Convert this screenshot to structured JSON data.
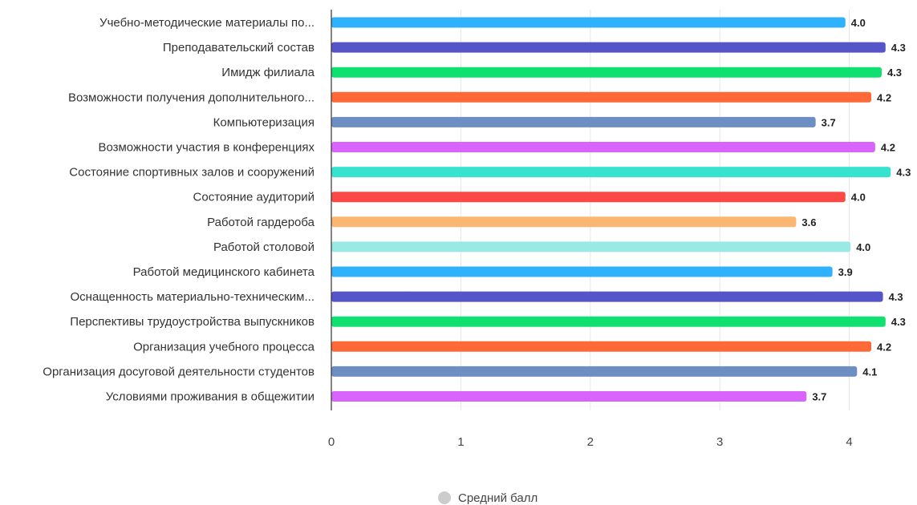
{
  "chart_data": {
    "type": "bar",
    "orientation": "horizontal",
    "categories": [
      "Учебно-методические материалы по...",
      "Преподавательский состав",
      "Имидж филиала",
      "Возможности получения дополнительного...",
      "Компьютеризация",
      "Возможности участия в конференциях",
      "Состояние спортивных залов и сооружений",
      "Состояние аудиторий",
      "Работой гардероба",
      "Работой столовой",
      "Работой медицинского кабинета",
      "Оснащенность материально-техническим...",
      "Перспективы трудоустройства выпускников",
      "Организация учебного процесса",
      "Организация досуговой деятельности студентов",
      "Условиями проживания в общежитии"
    ],
    "series": [
      {
        "name": "Средний балл",
        "values": [
          3.97,
          4.28,
          4.25,
          4.17,
          3.74,
          4.2,
          4.32,
          3.97,
          3.59,
          4.01,
          3.87,
          4.26,
          4.28,
          4.17,
          4.06,
          3.67
        ],
        "data_labels": [
          "4.0",
          "4.3",
          "4.3",
          "4.2",
          "3.7",
          "4.2",
          "4.3",
          "4.0",
          "3.6",
          "4.0",
          "3.9",
          "4.3",
          "4.3",
          "4.2",
          "4.1",
          "3.7"
        ]
      }
    ],
    "bar_colors": [
      "#2fb2fb",
      "#5654c9",
      "#10e06f",
      "#fe6937",
      "#6c8ec3",
      "#d963fd",
      "#36e3cf",
      "#fb4a45",
      "#fbb771",
      "#9ae9e4",
      "#2fb2fb",
      "#5654c9",
      "#10e06f",
      "#fe6937",
      "#6c8ec3",
      "#d963fd"
    ],
    "x_ticks": [
      "0",
      "1",
      "2",
      "3",
      "4"
    ],
    "xlim": [
      0,
      4.3
    ],
    "grid": "vertical",
    "legend": {
      "position": "bottom-center",
      "marker_color": "#cccccc",
      "label": "Средний балл"
    }
  }
}
